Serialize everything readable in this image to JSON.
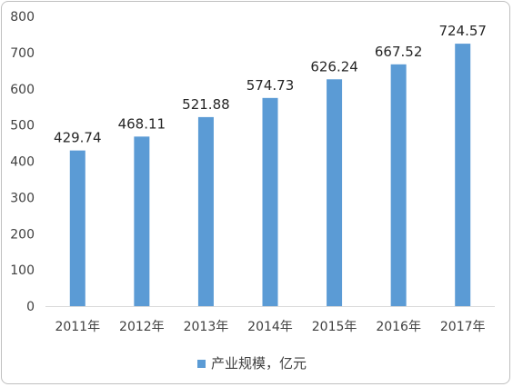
{
  "chart_data": {
    "type": "bar",
    "categories": [
      "2011年",
      "2012年",
      "2013年",
      "2014年",
      "2015年",
      "2016年",
      "2017年"
    ],
    "series": [
      {
        "name": "产业规模，亿元",
        "values": [
          429.74,
          468.11,
          521.88,
          574.73,
          626.24,
          667.52,
          724.57
        ],
        "data_labels": [
          "429.74",
          "468.11",
          "521.88",
          "574.73",
          "626.24",
          "667.52",
          "724.57"
        ]
      }
    ],
    "ylim": [
      0,
      800
    ],
    "yticks": [
      0,
      100,
      200,
      300,
      400,
      500,
      600,
      700,
      800
    ],
    "grid": false,
    "legend_placement": "bottom",
    "bar_color": "#5b9bd5",
    "axis_color": "#d9d9d9"
  }
}
